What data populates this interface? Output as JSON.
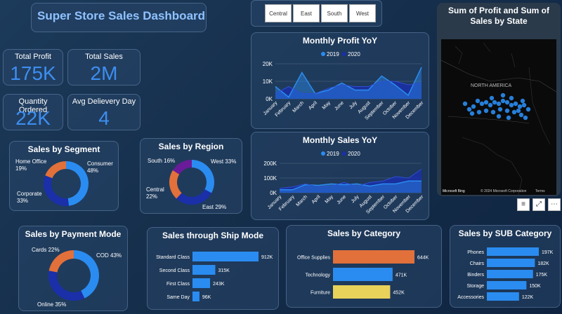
{
  "dashboard_title": "Super Store Sales Dashboard",
  "kpis": [
    {
      "label": "Total Profit",
      "value": "175K"
    },
    {
      "label": "Total Sales",
      "value": "2M"
    },
    {
      "label": "Quantity Ordered",
      "value": "22K"
    },
    {
      "label": "Avg Delievery Day",
      "value": "4"
    }
  ],
  "region_slicer": [
    "Central",
    "East",
    "South",
    "West"
  ],
  "map": {
    "title": "Sum of Profit and Sum of Sales by State",
    "region_label": "NORTH AMERICA",
    "attribution": "© 2024 Microsoft Corporation",
    "terms": "Terms",
    "brand": "Microsoft Bing"
  },
  "toolbar": {
    "filter_icon": "filter-icon",
    "focus_icon": "focus-icon",
    "more_icon": "more-icon"
  },
  "colors": {
    "y2019": "#2a8cf0",
    "y2020": "#1a2fa8",
    "orange": "#e2703a",
    "purple": "#6a1b9a",
    "yellow": "#e8d25a"
  },
  "chart_data": [
    {
      "id": "monthly_profit",
      "type": "area",
      "title": "Monthly Profit YoY",
      "categories": [
        "January",
        "February",
        "March",
        "April",
        "May",
        "June",
        "July",
        "August",
        "September",
        "October",
        "November",
        "December"
      ],
      "series": [
        {
          "name": "2019",
          "values": [
            7000,
            1000,
            15000,
            3000,
            5000,
            9000,
            5000,
            5000,
            13000,
            8000,
            2000,
            18000
          ]
        },
        {
          "name": "2020",
          "values": [
            3000,
            7000,
            3000,
            3000,
            6000,
            8000,
            7000,
            7000,
            10000,
            10000,
            8000,
            9000
          ]
        }
      ],
      "yticks": [
        "0K",
        "10K",
        "20K"
      ],
      "ylim": [
        0,
        20000
      ]
    },
    {
      "id": "monthly_sales",
      "type": "area",
      "title": "Monthly Sales YoY",
      "categories": [
        "January",
        "February",
        "March",
        "April",
        "May",
        "June",
        "July",
        "August",
        "September",
        "October",
        "November",
        "December"
      ],
      "series": [
        {
          "name": "2019",
          "values": [
            20000,
            20000,
            55000,
            50000,
            60000,
            55000,
            60000,
            45000,
            60000,
            60000,
            80000,
            80000
          ]
        },
        {
          "name": "2020",
          "values": [
            30000,
            40000,
            60000,
            40000,
            45000,
            70000,
            45000,
            70000,
            80000,
            110000,
            100000,
            160000
          ]
        }
      ],
      "yticks": [
        "0K",
        "100K",
        "200K"
      ],
      "ylim": [
        0,
        200000
      ]
    },
    {
      "id": "segment",
      "type": "pie",
      "title": "Sales by Segment",
      "labels": [
        "Consumer",
        "Corporate",
        "Home Office"
      ],
      "values": [
        48,
        33,
        19
      ],
      "display": [
        "48%",
        "33%",
        "19%"
      ]
    },
    {
      "id": "region",
      "type": "pie",
      "title": "Sales by Region",
      "labels": [
        "West",
        "East",
        "Central",
        "South"
      ],
      "values": [
        33,
        29,
        22,
        16
      ],
      "display": [
        "33%",
        "29%",
        "22%",
        "16%"
      ]
    },
    {
      "id": "payment",
      "type": "pie",
      "title": "Sales by Payment Mode",
      "labels": [
        "COD",
        "Online",
        "Cards"
      ],
      "values": [
        43,
        35,
        22
      ],
      "display": [
        "43%",
        "35%",
        "22%"
      ]
    },
    {
      "id": "ship_mode",
      "type": "bar",
      "title": "Sales through Ship Mode",
      "categories": [
        "Standard Class",
        "Second Class",
        "First Class",
        "Same Day"
      ],
      "values": [
        912,
        315,
        243,
        96
      ],
      "display": [
        "912K",
        "315K",
        "243K",
        "96K"
      ]
    },
    {
      "id": "category",
      "type": "bar",
      "title": "Sales by Category",
      "categories": [
        "Office Supplies",
        "Technology",
        "Furniture"
      ],
      "values": [
        644,
        471,
        452
      ],
      "display": [
        "644K",
        "471K",
        "452K"
      ]
    },
    {
      "id": "sub_category",
      "type": "bar",
      "title": "Sales by SUB Category",
      "categories": [
        "Phones",
        "Chairs",
        "Binders",
        "Storage",
        "Accessories"
      ],
      "values": [
        197,
        182,
        175,
        150,
        122
      ],
      "display": [
        "197K",
        "182K",
        "175K",
        "150K",
        "122K"
      ]
    }
  ]
}
